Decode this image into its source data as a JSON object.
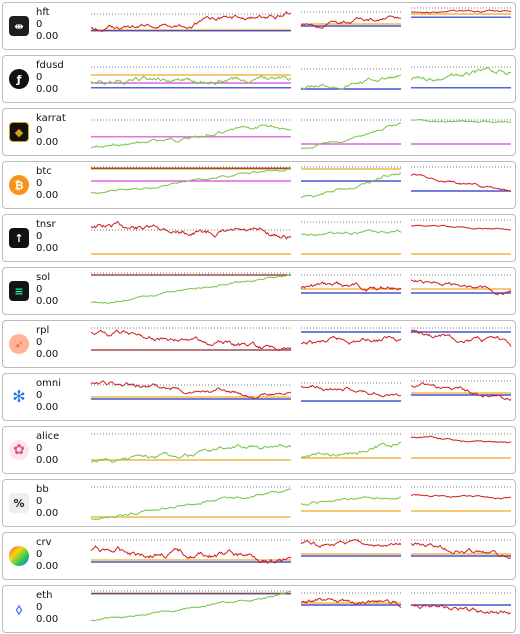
{
  "colors": {
    "up": "#76c442",
    "down": "#cc1f1f",
    "orange": "#f5a623",
    "blue": "#2130c8",
    "magenta": "#e040e0",
    "dotted": "#777777",
    "brown": "#8b2b2b",
    "marker": "#3a3acc",
    "tick": "#333333"
  },
  "tokens": [
    {
      "symbol": "hft",
      "amount": "0",
      "value": "0.00",
      "icon": "hft-logo-icon"
    },
    {
      "symbol": "fdusd",
      "amount": "0",
      "value": "0.00",
      "icon": "fdusd-logo-icon"
    },
    {
      "symbol": "karrat",
      "amount": "0",
      "value": "0.00",
      "icon": "karrat-logo-icon"
    },
    {
      "symbol": "btc",
      "amount": "0",
      "value": "0.00",
      "icon": "btc-logo-icon"
    },
    {
      "symbol": "tnsr",
      "amount": "0",
      "value": "0.00",
      "icon": "tnsr-logo-icon"
    },
    {
      "symbol": "sol",
      "amount": "0",
      "value": "0.00",
      "icon": "sol-logo-icon"
    },
    {
      "symbol": "rpl",
      "amount": "0",
      "value": "0.00",
      "icon": "rpl-logo-icon"
    },
    {
      "symbol": "omni",
      "amount": "0",
      "value": "0.00",
      "icon": "omni-logo-icon"
    },
    {
      "symbol": "alice",
      "amount": "0",
      "value": "0.00",
      "icon": "alice-logo-icon"
    },
    {
      "symbol": "bb",
      "amount": "0",
      "value": "0.00",
      "icon": "bb-logo-icon"
    },
    {
      "symbol": "crv",
      "amount": "0",
      "value": "0.00",
      "icon": "crv-logo-icon"
    },
    {
      "symbol": "eth",
      "amount": "0",
      "value": "0.00",
      "icon": "eth-logo-icon"
    }
  ]
}
